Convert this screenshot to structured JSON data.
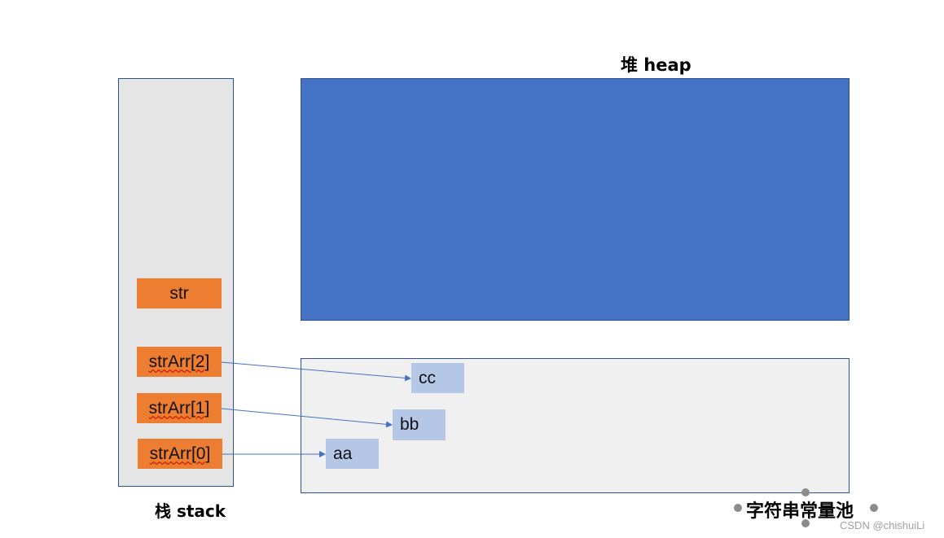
{
  "heap": {
    "title": "堆 heap"
  },
  "stack": {
    "title": "栈 stack",
    "variables": [
      {
        "label": "str"
      },
      {
        "label": "strArr[2]"
      },
      {
        "label": "strArr[1]"
      },
      {
        "label": "strArr[0]"
      }
    ]
  },
  "string_pool": {
    "title": "字符串常量池",
    "strings": [
      "cc",
      "bb",
      "aa"
    ]
  },
  "watermark": "CSDN @chishuiLi",
  "colors": {
    "heap_fill": "#4472c4",
    "stack_variable": "#ed7d31",
    "pool_string": "#b4c7e7",
    "arrow": "#4472c4"
  }
}
